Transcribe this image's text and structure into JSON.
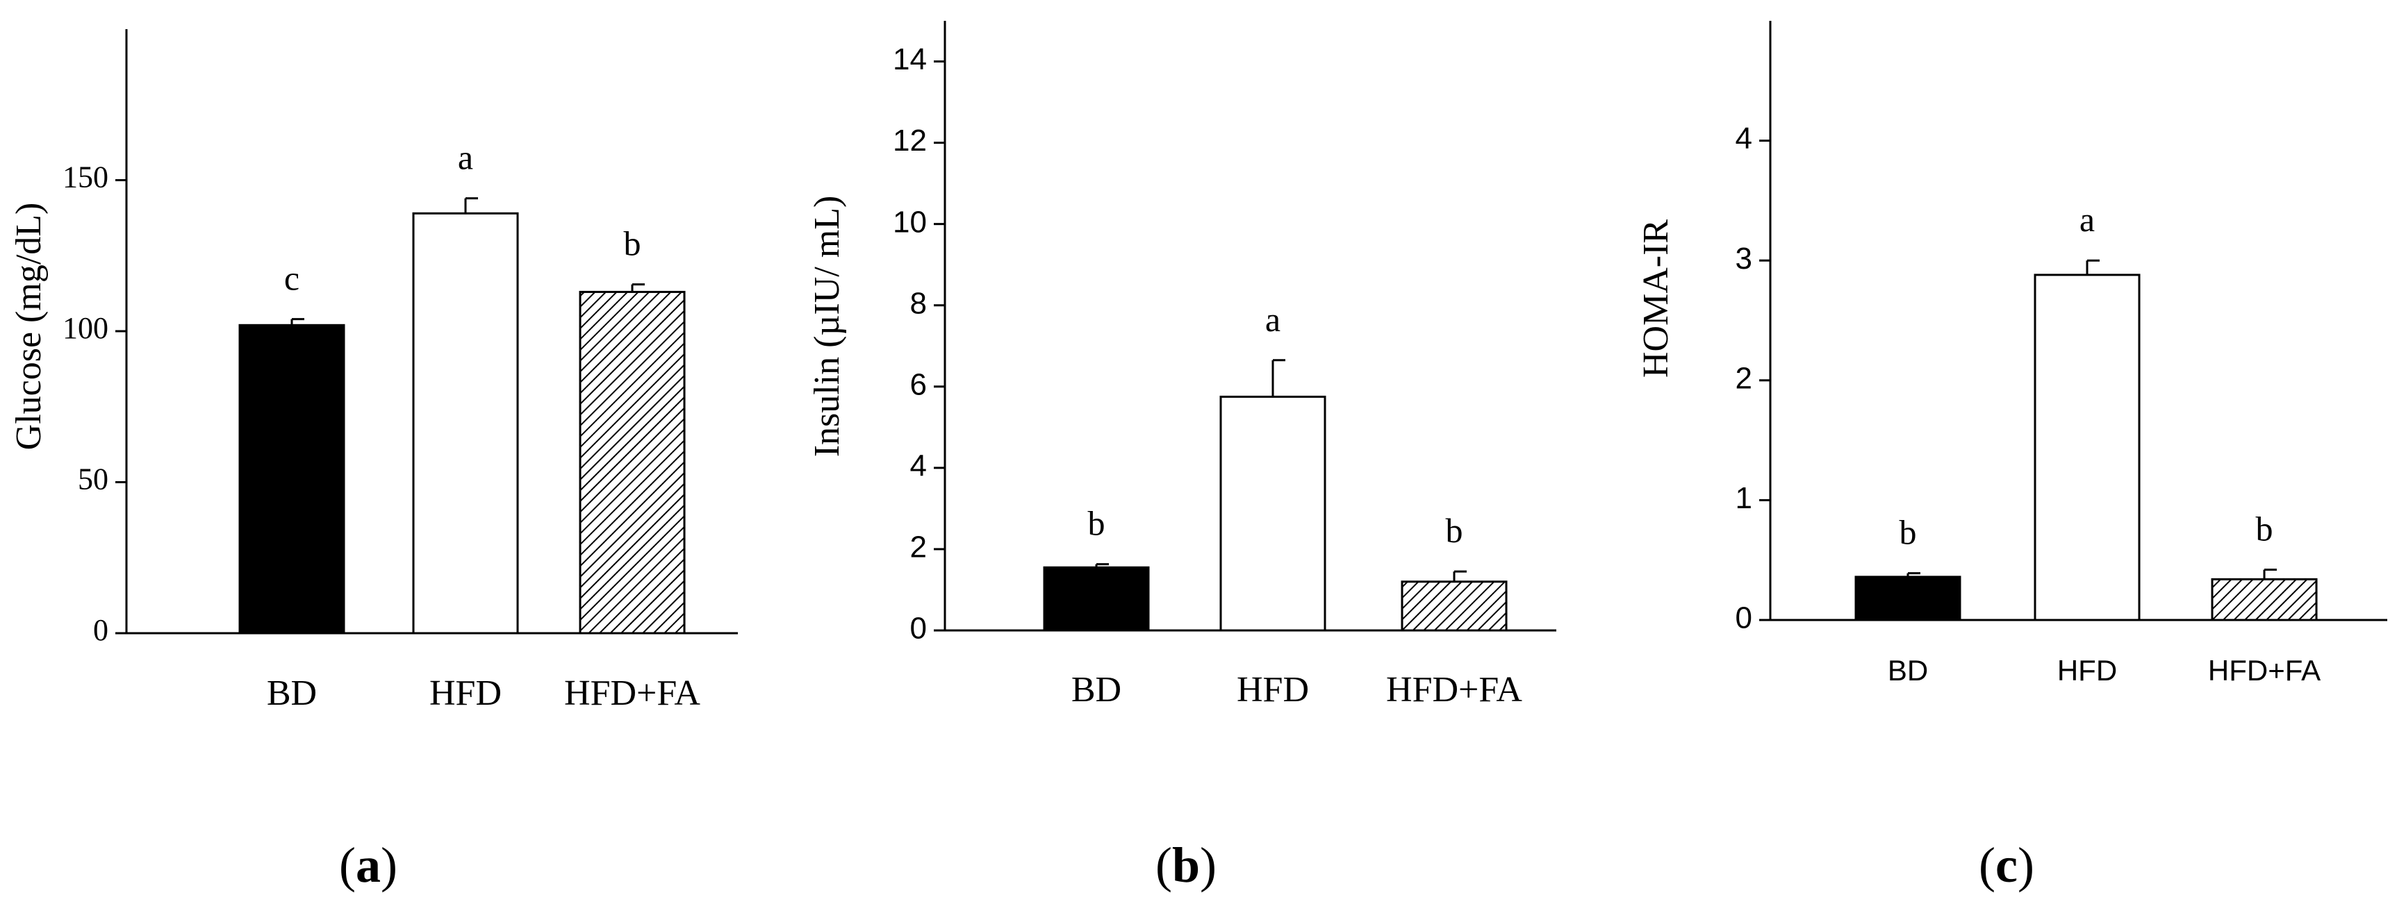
{
  "chart_data": [
    {
      "type": "bar",
      "panel": "(a)",
      "categories": [
        "BD",
        "HFD",
        "HFD+FA"
      ],
      "values": [
        102,
        139,
        113
      ],
      "errors": [
        2,
        5,
        2.5
      ],
      "letters": [
        "c",
        "a",
        "b"
      ],
      "fills": [
        "#000000",
        "#ffffff",
        "hatch"
      ],
      "ylabel": "Glucose (mg/dL)",
      "ylim": [
        0,
        200
      ],
      "yticks": [
        0,
        50,
        100,
        150
      ],
      "grid": false
    },
    {
      "type": "bar",
      "panel": "(b)",
      "categories": [
        "BD",
        "HFD",
        "HFD+FA"
      ],
      "values": [
        1.55,
        5.75,
        1.2
      ],
      "errors": [
        0.08,
        0.9,
        0.25
      ],
      "letters": [
        "b",
        "a",
        "b"
      ],
      "fills": [
        "#000000",
        "#ffffff",
        "hatch"
      ],
      "ylabel": "Insulin (µIU/ mL)",
      "ylim": [
        0,
        15
      ],
      "yticks": [
        0,
        2,
        4,
        6,
        8,
        10,
        12,
        14
      ],
      "grid": false
    },
    {
      "type": "bar",
      "panel": "(c)",
      "categories": [
        "BD",
        "HFD",
        "HFD+FA"
      ],
      "values": [
        0.36,
        2.88,
        0.34
      ],
      "errors": [
        0.03,
        0.12,
        0.08
      ],
      "letters": [
        "b",
        "a",
        "b"
      ],
      "fills": [
        "#000000",
        "#ffffff",
        "hatch"
      ],
      "ylabel": "HOMA-IR",
      "ylim": [
        0,
        5
      ],
      "yticks": [
        0,
        1,
        2,
        3,
        4
      ],
      "grid": false
    }
  ]
}
